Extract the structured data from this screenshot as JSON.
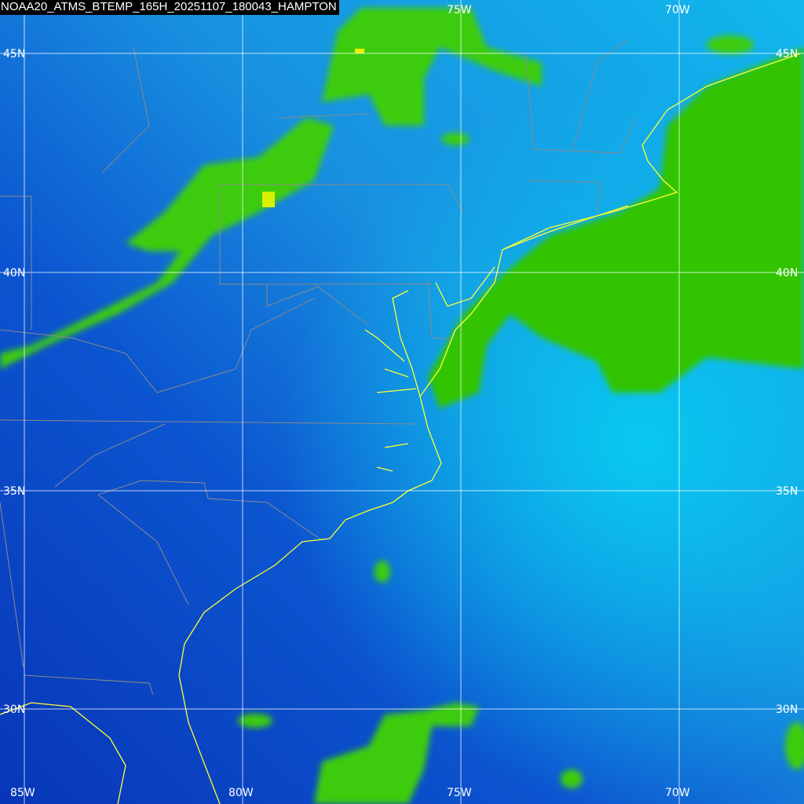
{
  "title": "NOAA20_ATMS_BTEMP_165H_20251107_180043_HAMPTON",
  "colors": {
    "land_cold": "#0a3fc4",
    "ocean": "#1a8fe0",
    "ocean_light": "#08c8f0",
    "precip_green": "#33cc00",
    "precip_yellow": "#e8f000",
    "coastline": "#ffff33",
    "borders": "#888888",
    "grid": "#ffffff"
  },
  "grid": {
    "top_lon_labels": [
      "75W",
      "70W"
    ],
    "bottom_lon_labels": [
      "85W",
      "80W",
      "75W",
      "70W"
    ],
    "left_lat_labels": [
      "45N",
      "40N",
      "35N",
      "30N"
    ],
    "right_lat_labels": [
      "45N",
      "40N",
      "35N",
      "30N"
    ]
  }
}
